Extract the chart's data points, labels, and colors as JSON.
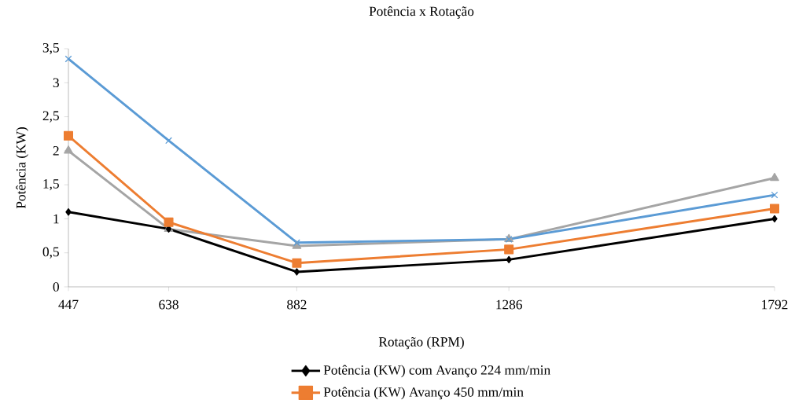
{
  "chart_data": {
    "type": "line",
    "title": "Potência x Rotação",
    "xlabel": "Rotação (RPM)",
    "ylabel": "Potência (KW)",
    "x": [
      447,
      638,
      882,
      1286,
      1792
    ],
    "xlim": [
      447,
      1792
    ],
    "xticks": [
      447,
      638,
      882,
      1286,
      1792
    ],
    "ylim": [
      0,
      3.5
    ],
    "yticks": [
      0,
      {
        "value": 0.5,
        "label": "0,5"
      },
      1,
      {
        "value": 1.5,
        "label": "1,5"
      },
      2,
      {
        "value": 2.5,
        "label": "2,5"
      },
      3,
      {
        "value": 3.5,
        "label": "3,5"
      }
    ],
    "grid": false,
    "legend": "bottom",
    "line_style": "solid",
    "series": [
      {
        "name": "Potência (KW) com Avanço 224 mm/min",
        "color": "#000000",
        "marker": "diamond",
        "values": [
          1.1,
          0.85,
          0.22,
          0.4,
          1.0
        ]
      },
      {
        "name": "Potência (KW) Avanço 450 mm/min",
        "color": "#ed7d31",
        "marker": "square",
        "values": [
          2.22,
          0.95,
          0.35,
          0.55,
          1.15
        ]
      },
      {
        "color": "#a5a5a5",
        "marker": "triangle",
        "values": [
          2.0,
          0.85,
          0.6,
          0.7,
          1.6
        ]
      },
      {
        "color": "#5b9bd5",
        "marker": "cross",
        "values": [
          3.35,
          2.15,
          0.65,
          0.7,
          1.35
        ]
      }
    ]
  }
}
